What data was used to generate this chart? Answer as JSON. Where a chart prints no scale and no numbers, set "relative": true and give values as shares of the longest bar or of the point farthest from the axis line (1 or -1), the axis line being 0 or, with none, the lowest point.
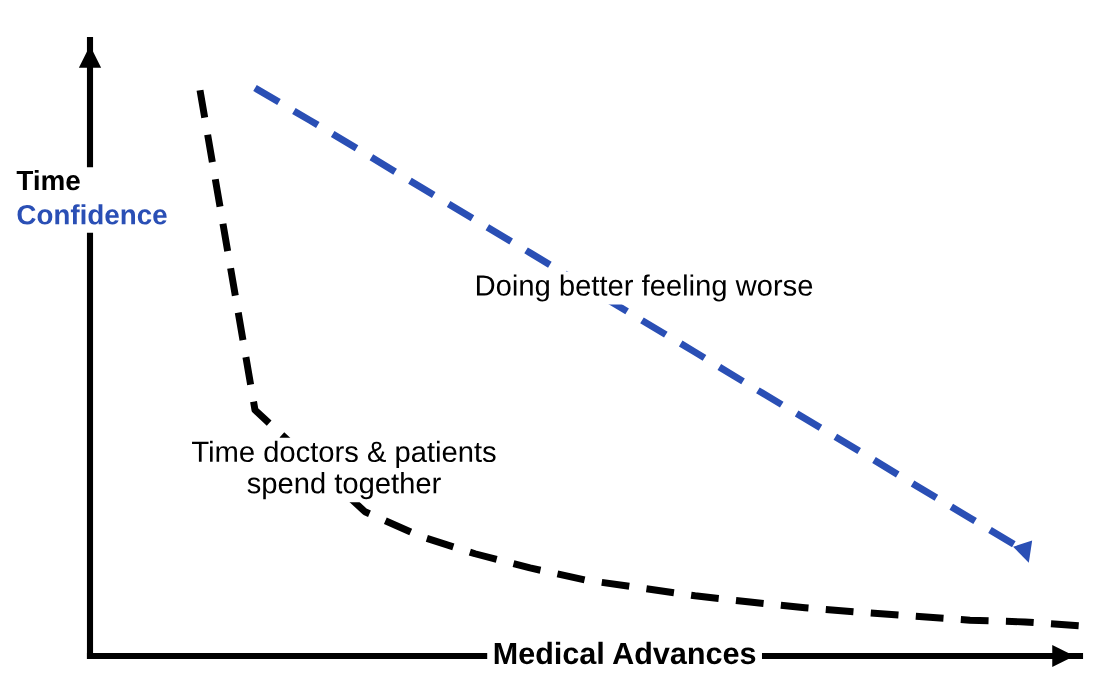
{
  "chart_data": {
    "type": "line",
    "relative": true,
    "xlabel": "Medical Advances",
    "categories": [
      null,
      null,
      null,
      null,
      null,
      null,
      null,
      null,
      null,
      null,
      null,
      null,
      null,
      null,
      null,
      null,
      null,
      null,
      null
    ],
    "series": [
      {
        "name": "Time",
        "color": "#000000",
        "values": [
          null,
          null,
          0.996,
          0.433,
          null,
          0.254,
          0.211,
          0.18,
          0.155,
          0.134,
          0.12,
          0.106,
          0.095,
          0.085,
          0.077,
          0.07,
          0.063,
          0.06,
          0.053
        ]
      },
      {
        "name": "Confidence",
        "color": "#2a4fb5",
        "values": [
          null,
          null,
          null,
          1.0,
          0.943,
          0.885,
          0.826,
          0.768,
          0.71,
          null,
          0.593,
          0.535,
          0.476,
          0.418,
          0.36,
          0.301,
          0.243,
          0.185,
          null
        ]
      }
    ],
    "annotations": [
      "Doing better feeling worse",
      "Time doctors & patients\nspend together"
    ],
    "line_style": "dashed",
    "marker": "none",
    "grid": false,
    "legend": "left"
  }
}
